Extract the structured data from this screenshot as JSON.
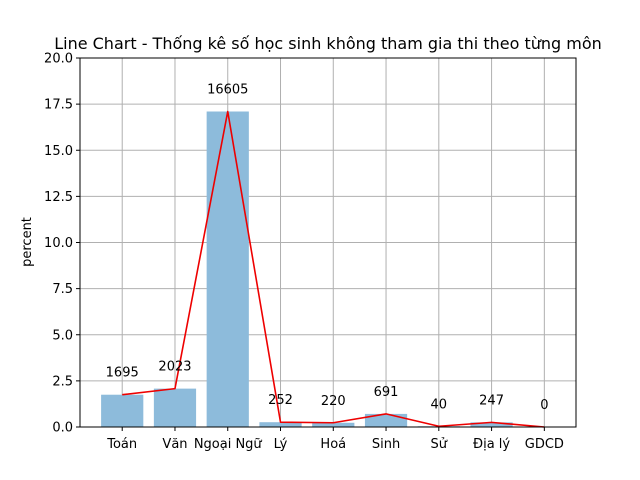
{
  "chart_data": {
    "type": "bar",
    "title": "Line Chart - Thống kê số học sinh không tham gia thi theo từng môn",
    "xlabel": "",
    "ylabel": "percent",
    "categories": [
      "Toán",
      "Văn",
      "Ngoại Ngữ",
      "Lý",
      "Hoá",
      "Sinh",
      "Sử",
      "Địa lý",
      "GDCD"
    ],
    "series": [
      {
        "values": [
          1.75,
          2.08,
          17.1,
          0.26,
          0.23,
          0.71,
          0.04,
          0.25,
          0.0
        ]
      }
    ],
    "data_labels": [
      "1695",
      "2023",
      "16605",
      "252",
      "220",
      "691",
      "40",
      "247",
      "0"
    ],
    "ylim": [
      0,
      20
    ],
    "yticks": [
      "0.0",
      "2.5",
      "5.0",
      "7.5",
      "10.0",
      "12.5",
      "15.0",
      "17.5",
      "20.0"
    ],
    "grid": true,
    "overlay": "line",
    "colors": {
      "bar": "#8dbbdb",
      "line": "#ee0000",
      "grid": "#b0b0b0",
      "axis": "#000000"
    }
  }
}
